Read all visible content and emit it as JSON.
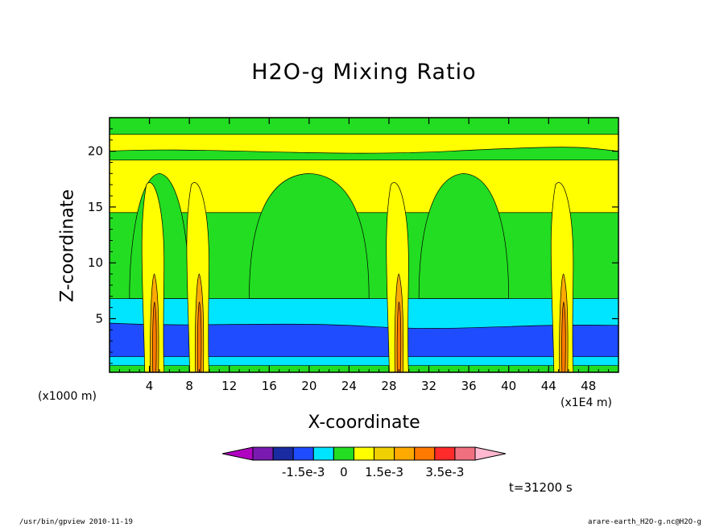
{
  "chart_data": {
    "type": "heatmap",
    "title": "H2O-g Mixing Ratio",
    "xlabel": "X-coordinate",
    "ylabel": "Z-coordinate",
    "x_units": "(x1E4 m)",
    "y_units": "(x1000 m)",
    "xlim": [
      0,
      51
    ],
    "ylim": [
      0.2,
      23
    ],
    "x_ticks": [
      4,
      8,
      12,
      16,
      20,
      24,
      28,
      32,
      36,
      40,
      44,
      48
    ],
    "y_ticks": [
      5,
      10,
      15,
      20
    ],
    "colorbar": {
      "colors": [
        "#b000c0",
        "#7a1ab0",
        "#1a2aa0",
        "#1f4cff",
        "#00e5ff",
        "#22dd22",
        "#ffff00",
        "#f0d000",
        "#ffaa00",
        "#ff7a00",
        "#ff2a2a",
        "#f07080",
        "#ffb8d0"
      ],
      "tick_labels": [
        "-1.5e-3",
        "0",
        "1.5e-3",
        "3.5e-3"
      ]
    },
    "bands": [
      {
        "level": "cyan",
        "color": "#00e5ff",
        "z_top": 6.8
      },
      {
        "level": "green",
        "color": "#22dd22",
        "z_top": 14.5
      },
      {
        "level": "yellow",
        "color": "#ffff00",
        "z_top": 21.5
      },
      {
        "level": "green-top",
        "color": "#22dd22",
        "z_top": 23
      }
    ],
    "convective_columns_x": [
      4.5,
      9,
      29,
      45.5
    ],
    "time_label": "t=31200 s"
  },
  "footer": {
    "left": "/usr/bin/gpview  2010-11-19",
    "right": "arare-earth_H2O-g.nc@H2O-g"
  }
}
